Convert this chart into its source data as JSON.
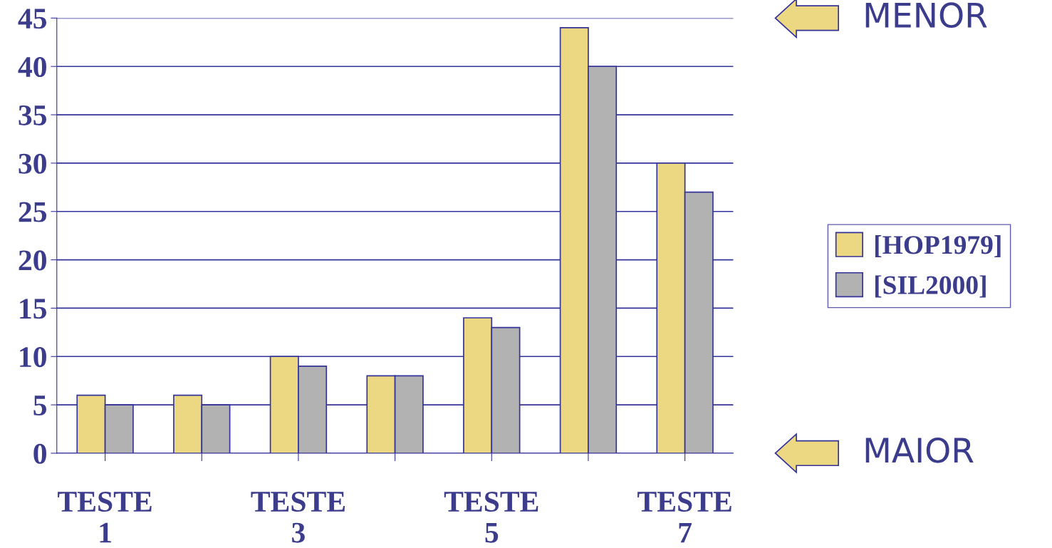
{
  "chart_data": {
    "type": "bar",
    "categories": [
      "TESTE\n1",
      null,
      "TESTE\n3",
      null,
      "TESTE\n5",
      null,
      "TESTE\n7"
    ],
    "series": [
      {
        "name": "[HOP1979]",
        "color": "#ecd882",
        "values": [
          6,
          6,
          10,
          8,
          14,
          44,
          30
        ]
      },
      {
        "name": "[SIL2000]",
        "color": "#b2b2b2",
        "values": [
          5,
          5,
          9,
          8,
          13,
          40,
          27
        ]
      }
    ],
    "ylim": [
      0,
      45
    ],
    "yticks": [
      0,
      5,
      10,
      15,
      20,
      25,
      30,
      35,
      40,
      45
    ],
    "grid": "y",
    "legend": "right",
    "annotations": [
      "MENOR",
      "MAIOR"
    ]
  }
}
